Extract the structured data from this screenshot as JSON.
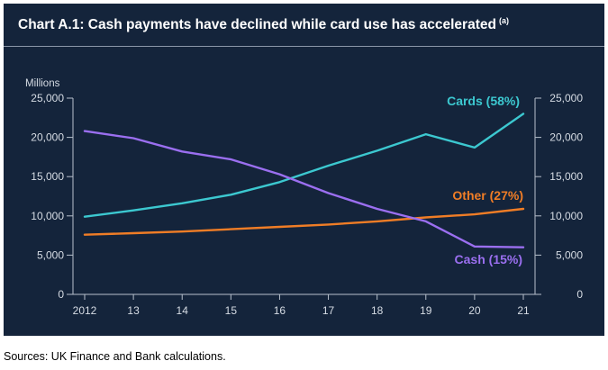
{
  "chart_data": {
    "type": "line",
    "title": "Chart A.1: Cash payments have declined while card use has accelerated",
    "title_note": "(a)",
    "ylabel": "Millions",
    "xlabel": "",
    "categories": [
      "2012",
      "13",
      "14",
      "15",
      "16",
      "17",
      "18",
      "19",
      "20",
      "21"
    ],
    "ylim": [
      0,
      25000
    ],
    "yticks": [
      0,
      5000,
      10000,
      15000,
      20000,
      25000
    ],
    "ytick_labels": [
      "0",
      "5,000",
      "10,000",
      "15,000",
      "20,000",
      "25,000"
    ],
    "grid": false,
    "series": [
      {
        "name": "Cards (58%)",
        "color": "#3cc8d0",
        "values": [
          9900,
          10700,
          11600,
          12700,
          14300,
          16400,
          18300,
          20400,
          18700,
          23000
        ]
      },
      {
        "name": "Other (27%)",
        "color": "#f07d26",
        "values": [
          7600,
          7800,
          8000,
          8300,
          8600,
          8900,
          9300,
          9800,
          10200,
          10900
        ]
      },
      {
        "name": "Cash (15%)",
        "color": "#9b6ff0",
        "values": [
          20800,
          19900,
          18200,
          17200,
          15300,
          12900,
          10900,
          9300,
          6100,
          6000
        ]
      }
    ]
  },
  "footer": {
    "source": "Sources: UK Finance and Bank calculations."
  }
}
